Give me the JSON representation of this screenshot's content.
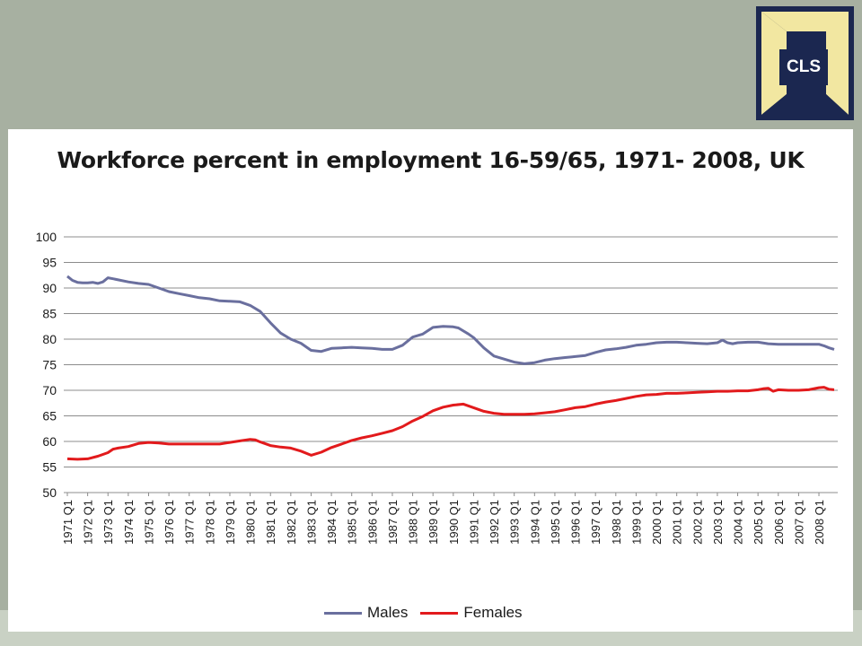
{
  "logo": {
    "text": "CLS"
  },
  "chart_data": {
    "type": "line",
    "title": "Workforce percent in employment 16-59/65, 1971- 2008, UK",
    "xlabel": "",
    "ylabel": "",
    "ylim": [
      50,
      100
    ],
    "yticks": [
      50,
      55,
      60,
      65,
      70,
      75,
      80,
      85,
      90,
      95,
      100
    ],
    "xticks": [
      "1971 Q1",
      "1972 Q1",
      "1973 Q1",
      "1974 Q1",
      "1975 Q1",
      "1976 Q1",
      "1977 Q1",
      "1978 Q1",
      "1979 Q1",
      "1980 Q1",
      "1981 Q1",
      "1982 Q1",
      "1983 Q1",
      "1984 Q1",
      "1985 Q1",
      "1986 Q1",
      "1987 Q1",
      "1988 Q1",
      "1989 Q1",
      "1990 Q1",
      "1991 Q1",
      "1992 Q1",
      "1993 Q1",
      "1994 Q1",
      "1995 Q1",
      "1996 Q1",
      "1997 Q1",
      "1998 Q1",
      "1999 Q1",
      "2000 Q1",
      "2001 Q1",
      "2002 Q1",
      "2003 Q1",
      "2004 Q1",
      "2005 Q1",
      "2006 Q1",
      "2007 Q1",
      "2008 Q1"
    ],
    "x_range": [
      1971.0,
      2008.75
    ],
    "grid": "horizontal",
    "legend_position": "bottom",
    "series": [
      {
        "name": "Males",
        "color": "#6a6f9e",
        "points": [
          [
            1971.0,
            92.3
          ],
          [
            1971.25,
            91.5
          ],
          [
            1971.5,
            91.1
          ],
          [
            1971.75,
            91.0
          ],
          [
            1972.0,
            91.0
          ],
          [
            1972.25,
            91.1
          ],
          [
            1972.5,
            90.9
          ],
          [
            1972.75,
            91.2
          ],
          [
            1973.0,
            92.0
          ],
          [
            1973.25,
            91.8
          ],
          [
            1973.5,
            91.6
          ],
          [
            1974.0,
            91.2
          ],
          [
            1974.5,
            90.9
          ],
          [
            1975.0,
            90.7
          ],
          [
            1975.5,
            90.0
          ],
          [
            1976.0,
            89.3
          ],
          [
            1976.5,
            88.9
          ],
          [
            1977.0,
            88.5
          ],
          [
            1977.5,
            88.1
          ],
          [
            1978.0,
            87.9
          ],
          [
            1978.5,
            87.5
          ],
          [
            1979.0,
            87.4
          ],
          [
            1979.5,
            87.3
          ],
          [
            1980.0,
            86.6
          ],
          [
            1980.5,
            85.4
          ],
          [
            1981.0,
            83.2
          ],
          [
            1981.5,
            81.2
          ],
          [
            1982.0,
            80.0
          ],
          [
            1982.5,
            79.2
          ],
          [
            1983.0,
            77.8
          ],
          [
            1983.5,
            77.6
          ],
          [
            1984.0,
            78.2
          ],
          [
            1984.5,
            78.3
          ],
          [
            1985.0,
            78.4
          ],
          [
            1985.5,
            78.3
          ],
          [
            1986.0,
            78.2
          ],
          [
            1986.5,
            78.0
          ],
          [
            1987.0,
            78.0
          ],
          [
            1987.5,
            78.8
          ],
          [
            1988.0,
            80.4
          ],
          [
            1988.5,
            81.0
          ],
          [
            1989.0,
            82.3
          ],
          [
            1989.5,
            82.5
          ],
          [
            1990.0,
            82.4
          ],
          [
            1990.25,
            82.2
          ],
          [
            1990.75,
            81.0
          ],
          [
            1991.0,
            80.3
          ],
          [
            1991.5,
            78.3
          ],
          [
            1992.0,
            76.7
          ],
          [
            1992.5,
            76.1
          ],
          [
            1993.0,
            75.5
          ],
          [
            1993.5,
            75.2
          ],
          [
            1994.0,
            75.4
          ],
          [
            1994.5,
            75.9
          ],
          [
            1995.0,
            76.2
          ],
          [
            1995.5,
            76.4
          ],
          [
            1996.0,
            76.6
          ],
          [
            1996.5,
            76.8
          ],
          [
            1997.0,
            77.4
          ],
          [
            1997.5,
            77.9
          ],
          [
            1998.0,
            78.1
          ],
          [
            1998.5,
            78.4
          ],
          [
            1999.0,
            78.8
          ],
          [
            1999.5,
            79.0
          ],
          [
            2000.0,
            79.3
          ],
          [
            2000.5,
            79.4
          ],
          [
            2001.0,
            79.4
          ],
          [
            2001.5,
            79.3
          ],
          [
            2002.0,
            79.2
          ],
          [
            2002.5,
            79.1
          ],
          [
            2003.0,
            79.3
          ],
          [
            2003.25,
            79.8
          ],
          [
            2003.5,
            79.3
          ],
          [
            2003.75,
            79.1
          ],
          [
            2004.0,
            79.3
          ],
          [
            2004.5,
            79.4
          ],
          [
            2005.0,
            79.4
          ],
          [
            2005.5,
            79.1
          ],
          [
            2006.0,
            79.0
          ],
          [
            2006.5,
            79.0
          ],
          [
            2007.0,
            79.0
          ],
          [
            2007.5,
            79.0
          ],
          [
            2008.0,
            79.0
          ],
          [
            2008.25,
            78.7
          ],
          [
            2008.5,
            78.3
          ],
          [
            2008.75,
            78.0
          ]
        ]
      },
      {
        "name": "Females",
        "color": "#e21a1c",
        "points": [
          [
            1971.0,
            56.6
          ],
          [
            1971.5,
            56.5
          ],
          [
            1972.0,
            56.6
          ],
          [
            1972.5,
            57.1
          ],
          [
            1973.0,
            57.8
          ],
          [
            1973.25,
            58.5
          ],
          [
            1973.5,
            58.7
          ],
          [
            1974.0,
            59.0
          ],
          [
            1974.5,
            59.6
          ],
          [
            1975.0,
            59.8
          ],
          [
            1975.5,
            59.7
          ],
          [
            1976.0,
            59.5
          ],
          [
            1976.5,
            59.5
          ],
          [
            1977.0,
            59.5
          ],
          [
            1977.5,
            59.5
          ],
          [
            1978.0,
            59.5
          ],
          [
            1978.5,
            59.5
          ],
          [
            1979.0,
            59.8
          ],
          [
            1979.5,
            60.1
          ],
          [
            1980.0,
            60.4
          ],
          [
            1980.25,
            60.3
          ],
          [
            1980.5,
            59.9
          ],
          [
            1981.0,
            59.2
          ],
          [
            1981.5,
            58.9
          ],
          [
            1982.0,
            58.7
          ],
          [
            1982.5,
            58.1
          ],
          [
            1983.0,
            57.3
          ],
          [
            1983.5,
            57.9
          ],
          [
            1984.0,
            58.8
          ],
          [
            1984.5,
            59.5
          ],
          [
            1985.0,
            60.2
          ],
          [
            1985.5,
            60.7
          ],
          [
            1986.0,
            61.1
          ],
          [
            1986.5,
            61.6
          ],
          [
            1987.0,
            62.1
          ],
          [
            1987.5,
            62.9
          ],
          [
            1988.0,
            64.0
          ],
          [
            1988.5,
            64.9
          ],
          [
            1989.0,
            66.0
          ],
          [
            1989.5,
            66.7
          ],
          [
            1990.0,
            67.1
          ],
          [
            1990.5,
            67.3
          ],
          [
            1991.0,
            66.6
          ],
          [
            1991.5,
            65.9
          ],
          [
            1992.0,
            65.5
          ],
          [
            1992.5,
            65.3
          ],
          [
            1993.0,
            65.3
          ],
          [
            1993.5,
            65.3
          ],
          [
            1994.0,
            65.4
          ],
          [
            1994.5,
            65.6
          ],
          [
            1995.0,
            65.8
          ],
          [
            1995.5,
            66.2
          ],
          [
            1996.0,
            66.6
          ],
          [
            1996.5,
            66.8
          ],
          [
            1997.0,
            67.3
          ],
          [
            1997.5,
            67.7
          ],
          [
            1998.0,
            68.0
          ],
          [
            1998.5,
            68.4
          ],
          [
            1999.0,
            68.8
          ],
          [
            1999.5,
            69.1
          ],
          [
            2000.0,
            69.2
          ],
          [
            2000.5,
            69.4
          ],
          [
            2001.0,
            69.4
          ],
          [
            2001.5,
            69.5
          ],
          [
            2002.0,
            69.6
          ],
          [
            2002.5,
            69.7
          ],
          [
            2003.0,
            69.8
          ],
          [
            2003.5,
            69.8
          ],
          [
            2004.0,
            69.9
          ],
          [
            2004.5,
            69.9
          ],
          [
            2005.0,
            70.1
          ],
          [
            2005.25,
            70.3
          ],
          [
            2005.5,
            70.4
          ],
          [
            2005.75,
            69.8
          ],
          [
            2006.0,
            70.1
          ],
          [
            2006.5,
            70.0
          ],
          [
            2007.0,
            70.0
          ],
          [
            2007.5,
            70.1
          ],
          [
            2008.0,
            70.5
          ],
          [
            2008.25,
            70.6
          ],
          [
            2008.5,
            70.2
          ],
          [
            2008.75,
            70.1
          ]
        ]
      }
    ]
  }
}
